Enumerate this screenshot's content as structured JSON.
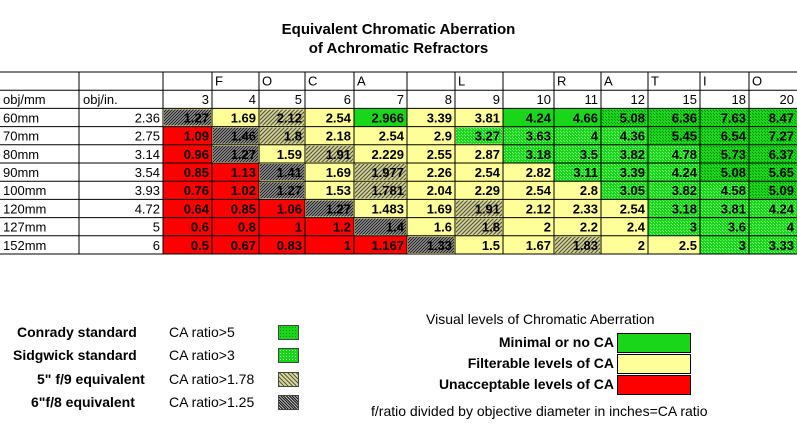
{
  "title_line1": "Equivalent Chromatic Aberration",
  "title_line2": "of Achromatic Refractors",
  "focal_letters": [
    "F",
    "O",
    "C",
    "A",
    "L",
    "R",
    "A",
    "T",
    "I",
    "O"
  ],
  "headers": {
    "obj_mm": "obj/mm",
    "obj_in": "obj/in."
  },
  "colors": {
    "green": "#1ad61a",
    "yellow": "#ffff99",
    "red": "#ff0000",
    "white": "#ffffff"
  },
  "legend": {
    "standards": [
      {
        "name": "Conrady standard",
        "criterion": "CA ratio>5",
        "icon": "green-check-pattern"
      },
      {
        "name": "Sidgwick standard",
        "criterion": "CA ratio>3",
        "icon": "light-green-check-pattern"
      },
      {
        "name": "5\" f/9  equivalent",
        "criterion": "CA ratio>1.78",
        "icon": "light-hatch-pattern"
      },
      {
        "name": "6\"f/8 equivalent",
        "criterion": "CA ratio>1.25",
        "icon": "dark-hatch-pattern"
      }
    ],
    "visual_title": "Visual levels of Chromatic Aberration",
    "visual_levels": [
      {
        "label": "Minimal or no CA",
        "color": "#1ad61a"
      },
      {
        "label": "Filterable levels of CA",
        "color": "#ffff99"
      },
      {
        "label": "Unacceptable levels of CA",
        "color": "#ff0000"
      }
    ],
    "footnote": "f/ratio divided by objective diameter in inches=CA ratio"
  },
  "chart_data": {
    "type": "table",
    "title": "Equivalent Chromatic Aberration of Achromatic Refractors",
    "column_header": "FOCAL RATIO",
    "focal_ratios": [
      "3",
      "4",
      "5",
      "6",
      "7",
      "8",
      "9",
      "10",
      "11",
      "12",
      "15",
      "18",
      "20"
    ],
    "rows": [
      {
        "mm": "60mm",
        "inches": "2.36",
        "values": [
          "1.27",
          "1.69",
          "2.12",
          "2.54",
          "2.966",
          "3.39",
          "3.81",
          "4.24",
          "4.66",
          "5.08",
          "6.36",
          "7.63",
          "8.47"
        ],
        "fill": [
          "y",
          "y",
          "y",
          "y",
          "g",
          "y",
          "y",
          "g",
          "g",
          "g",
          "g",
          "g",
          "g"
        ],
        "pattern": [
          "h6",
          "",
          "h5",
          "",
          "",
          "",
          "",
          "",
          "",
          "c5",
          "c5",
          "c5",
          "c5"
        ]
      },
      {
        "mm": "70mm",
        "inches": "2.75",
        "values": [
          "1.09",
          "1.46",
          "1.8",
          "2.18",
          "2.54",
          "2.9",
          "3.27",
          "3.63",
          "4",
          "4.36",
          "5.45",
          "6.54",
          "7.27"
        ],
        "fill": [
          "r",
          "y",
          "y",
          "y",
          "y",
          "y",
          "y",
          "g",
          "g",
          "g",
          "g",
          "g",
          "g"
        ],
        "pattern": [
          "",
          "h6",
          "h5",
          "",
          "",
          "",
          "c3",
          "c3",
          "c3",
          "c3",
          "c5",
          "c5",
          "c5"
        ]
      },
      {
        "mm": "80mm",
        "inches": "3.14",
        "values": [
          "0.96",
          "1.27",
          "1.59",
          "1.91",
          "2.229",
          "2.55",
          "2.87",
          "3.18",
          "3.5",
          "3.82",
          "4.78",
          "5.73",
          "6.37"
        ],
        "fill": [
          "r",
          "y",
          "y",
          "y",
          "y",
          "y",
          "y",
          "g",
          "g",
          "g",
          "g",
          "g",
          "g"
        ],
        "pattern": [
          "",
          "h6",
          "",
          "h5",
          "",
          "",
          "",
          "c3",
          "c3",
          "c3",
          "c3",
          "c5",
          "c5"
        ]
      },
      {
        "mm": "90mm",
        "inches": "3.54",
        "values": [
          "0.85",
          "1.13",
          "1.41",
          "1.69",
          "1.977",
          "2.26",
          "2.54",
          "2.82",
          "3.11",
          "3.39",
          "4.24",
          "5.08",
          "5.65"
        ],
        "fill": [
          "r",
          "r",
          "y",
          "y",
          "y",
          "y",
          "y",
          "y",
          "g",
          "g",
          "g",
          "g",
          "g"
        ],
        "pattern": [
          "",
          "",
          "h6",
          "",
          "h5",
          "",
          "",
          "",
          "c3",
          "c3",
          "c3",
          "c5",
          "c5"
        ]
      },
      {
        "mm": "100mm",
        "inches": "3.93",
        "values": [
          "0.76",
          "1.02",
          "1.27",
          "1.53",
          "1.781",
          "2.04",
          "2.29",
          "2.54",
          "2.8",
          "3.05",
          "3.82",
          "4.58",
          "5.09"
        ],
        "fill": [
          "r",
          "r",
          "y",
          "y",
          "y",
          "y",
          "y",
          "y",
          "y",
          "g",
          "g",
          "g",
          "g"
        ],
        "pattern": [
          "",
          "",
          "h6",
          "",
          "h5",
          "",
          "",
          "",
          "",
          "c3",
          "c3",
          "c3",
          "c5"
        ]
      },
      {
        "mm": "120mm",
        "inches": "4.72",
        "values": [
          "0.64",
          "0.85",
          "1.06",
          "1.27",
          "1.483",
          "1.69",
          "1.91",
          "2.12",
          "2.33",
          "2.54",
          "3.18",
          "3.81",
          "4.24"
        ],
        "fill": [
          "r",
          "r",
          "r",
          "y",
          "y",
          "y",
          "y",
          "y",
          "y",
          "y",
          "g",
          "g",
          "g"
        ],
        "pattern": [
          "",
          "",
          "",
          "h6",
          "",
          "",
          "h5",
          "",
          "",
          "",
          "c3",
          "c3",
          "c3"
        ]
      },
      {
        "mm": "127mm",
        "inches": "5",
        "values": [
          "0.6",
          "0.8",
          "1",
          "1.2",
          "1.4",
          "1.6",
          "1.8",
          "2",
          "2.2",
          "2.4",
          "3",
          "3.6",
          "4"
        ],
        "fill": [
          "r",
          "r",
          "r",
          "r",
          "y",
          "y",
          "y",
          "y",
          "y",
          "y",
          "g",
          "g",
          "g"
        ],
        "pattern": [
          "",
          "",
          "",
          "",
          "h6",
          "",
          "h5",
          "",
          "",
          "",
          "c3",
          "c3",
          "c3"
        ]
      },
      {
        "mm": "152mm",
        "inches": "6",
        "values": [
          "0.5",
          "0.67",
          "0.83",
          "1",
          "1.167",
          "1.33",
          "1.5",
          "1.67",
          "1.83",
          "2",
          "2.5",
          "3",
          "3.33"
        ],
        "fill": [
          "r",
          "r",
          "r",
          "r",
          "r",
          "y",
          "y",
          "y",
          "y",
          "y",
          "y",
          "g",
          "g"
        ],
        "pattern": [
          "",
          "",
          "",
          "",
          "",
          "h6",
          "",
          "",
          "h5",
          "",
          "",
          "c3",
          "c3"
        ]
      }
    ]
  }
}
